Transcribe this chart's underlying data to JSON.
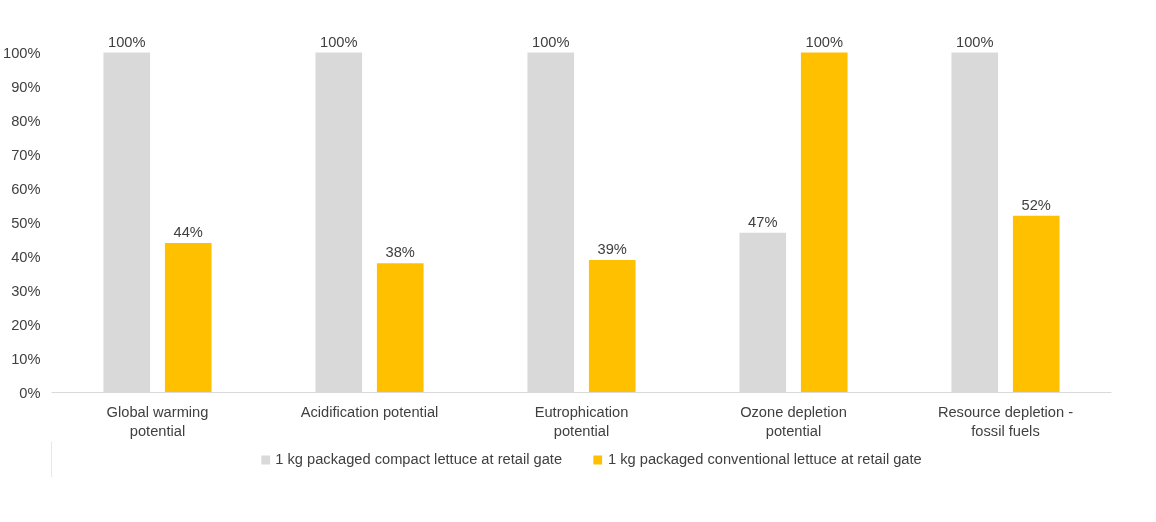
{
  "chart_data": {
    "type": "bar",
    "categories": [
      "Global warming potential",
      "Acidification potential",
      "Eutrophication potential",
      "Ozone depletion potential",
      "Resource depletion - fossil fuels"
    ],
    "series": [
      {
        "name": "1 kg packaged compact lettuce at retail gate",
        "color": "#d9d9d9",
        "values": [
          100,
          100,
          100,
          47,
          100
        ],
        "value_labels": [
          "100%",
          "100%",
          "100%",
          "47%",
          "100%"
        ]
      },
      {
        "name": "1 kg packaged conventional lettuce at retail gate",
        "color": "#ffc000",
        "values": [
          44,
          38,
          39,
          100,
          52
        ],
        "value_labels": [
          "44%",
          "38%",
          "39%",
          "100%",
          "52%"
        ]
      }
    ],
    "ylim": [
      0,
      100
    ],
    "yticks": [
      {
        "value": 0,
        "label": "0%"
      },
      {
        "value": 10,
        "label": "10%"
      },
      {
        "value": 20,
        "label": "20%"
      },
      {
        "value": 30,
        "label": "30%"
      },
      {
        "value": 40,
        "label": "40%"
      },
      {
        "value": 50,
        "label": "50%"
      },
      {
        "value": 60,
        "label": "60%"
      },
      {
        "value": 70,
        "label": "70%"
      },
      {
        "value": 80,
        "label": "80%"
      },
      {
        "value": 90,
        "label": "90%"
      },
      {
        "value": 100,
        "label": "100%"
      }
    ],
    "grid": false,
    "legend": "bottom"
  }
}
